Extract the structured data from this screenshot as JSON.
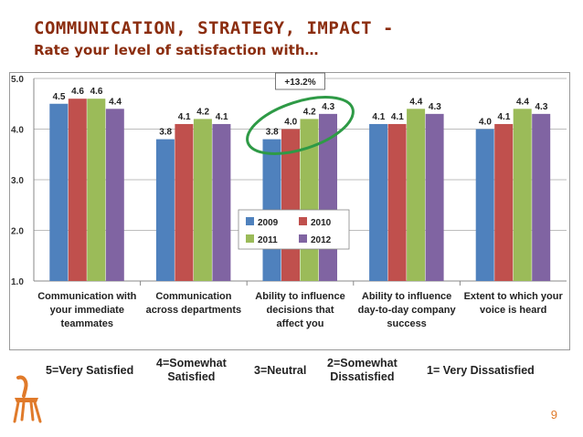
{
  "header": {
    "title": "COMMUNICATION, STRATEGY, IMPACT -",
    "subtitle": "Rate your level of satisfaction with…"
  },
  "chart_data": {
    "type": "bar",
    "title": "",
    "xlabel": "",
    "ylabel": "",
    "ylim": [
      1.0,
      5.0
    ],
    "yticks": [
      "1.0",
      "2.0",
      "3.0",
      "4.0",
      "5.0"
    ],
    "grid": true,
    "legend_position": "center",
    "categories": [
      [
        "Communication with",
        "your immediate",
        "teammates"
      ],
      [
        "Communication",
        "across departments"
      ],
      [
        "Ability to influence",
        "decisions that",
        "affect you"
      ],
      [
        "Ability to influence",
        "day-to-day company",
        "success"
      ],
      [
        "Extent to which your",
        "voice is heard"
      ]
    ],
    "series": [
      {
        "name": "2009",
        "color": "#4F81BD",
        "values": [
          4.5,
          3.8,
          3.8,
          4.1,
          4.0
        ]
      },
      {
        "name": "2010",
        "color": "#C0504D",
        "values": [
          4.6,
          4.1,
          4.0,
          4.1,
          4.1
        ]
      },
      {
        "name": "2011",
        "color": "#9BBB59",
        "values": [
          4.6,
          4.2,
          4.2,
          4.4,
          4.4
        ]
      },
      {
        "name": "2012",
        "color": "#8064A2",
        "values": [
          4.4,
          4.1,
          4.3,
          4.3,
          4.3
        ]
      }
    ],
    "annotation": {
      "text": "+13.2%",
      "category_index": 2,
      "color": "#2E9A46"
    }
  },
  "scale_labels": [
    {
      "text": "5=Very Satisfied"
    },
    {
      "text": "4=Somewhat\nSatisfied"
    },
    {
      "text": "3=Neutral"
    },
    {
      "text": "2=Somewhat\nDissatisfied"
    },
    {
      "text": "1= Very Dissatisfied"
    }
  ],
  "footer": {
    "page_number": "9",
    "logo_icon": "chair-icon"
  }
}
